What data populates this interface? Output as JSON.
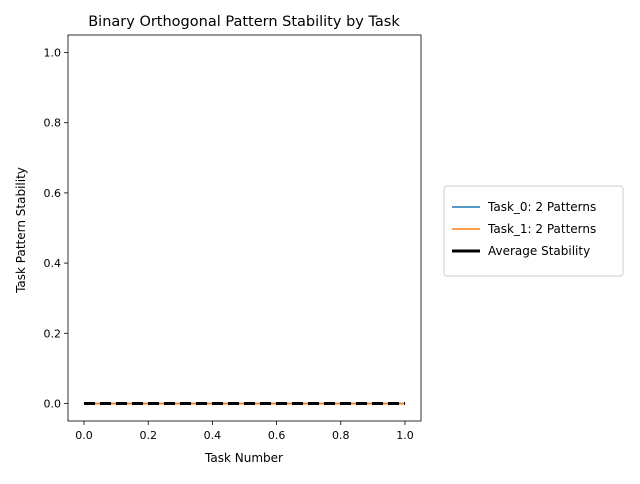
{
  "chart_data": {
    "type": "line",
    "title": "Binary Orthogonal Pattern Stability by Task",
    "xlabel": "Task Number",
    "ylabel": "Task Pattern Stability",
    "xlim": [
      -0.05,
      1.05
    ],
    "ylim": [
      -0.05,
      1.05
    ],
    "xticks": [
      0.0,
      0.2,
      0.4,
      0.6,
      0.8,
      1.0
    ],
    "xtick_labels": [
      "0.0",
      "0.2",
      "0.4",
      "0.6",
      "0.8",
      "1.0"
    ],
    "yticks": [
      0.0,
      0.2,
      0.4,
      0.6,
      0.8,
      1.0
    ],
    "ytick_labels": [
      "0.0",
      "0.2",
      "0.4",
      "0.6",
      "0.8",
      "1.0"
    ],
    "grid": false,
    "legend_placement": "outside-right",
    "series": [
      {
        "name": "Task_0: 2 Patterns",
        "color": "#1f77b4",
        "style": "solid",
        "x": [
          0,
          1
        ],
        "values": [
          0,
          0
        ]
      },
      {
        "name": "Task_1: 2 Patterns",
        "color": "#ff7f0e",
        "style": "solid",
        "x": [
          0,
          1
        ],
        "values": [
          0,
          0
        ]
      },
      {
        "name": "Average Stability",
        "color": "#000000",
        "style": "dashed-thick",
        "x": [
          0,
          1
        ],
        "values": [
          0,
          0
        ]
      }
    ]
  }
}
